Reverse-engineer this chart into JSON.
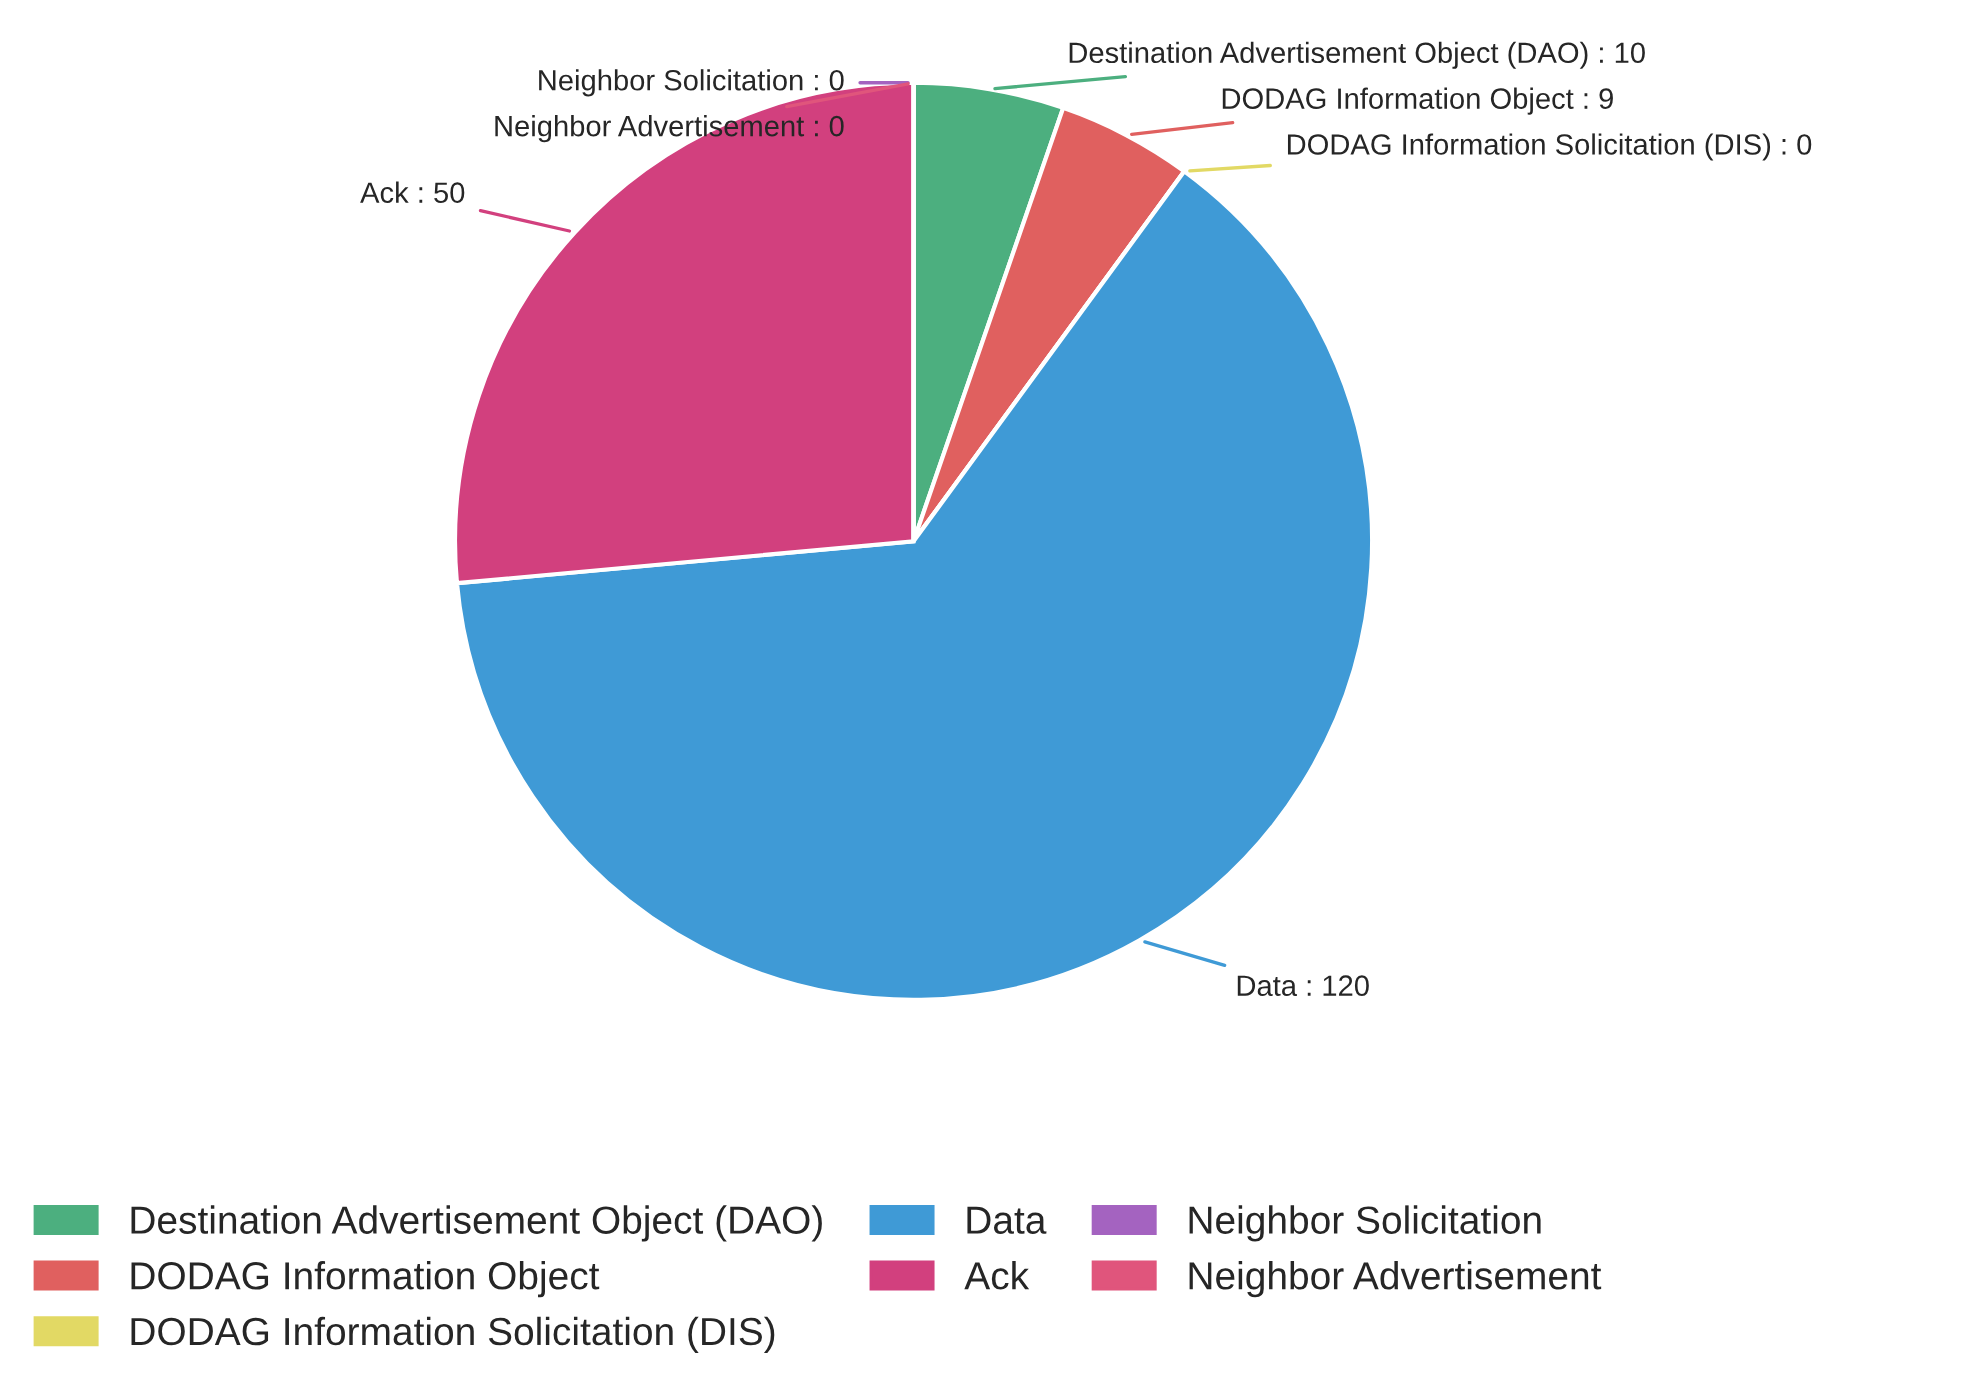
{
  "chart_data": {
    "type": "pie",
    "categories": [
      "Destination Advertisement Object (DAO)",
      "DODAG Information Object",
      "DODAG Information Solicitation (DIS)",
      "Data",
      "Ack",
      "Neighbor Solicitation",
      "Neighbor Advertisement"
    ],
    "values": [
      10,
      9,
      0,
      120,
      50,
      0,
      0
    ],
    "colors": [
      "#4caf7f",
      "#e0605f",
      "#e2d964",
      "#3f9ad6",
      "#d2407e",
      "#a463c0",
      "#e0557c"
    ],
    "value_labels": [
      ": 10",
      ": 9",
      ": 0",
      ": 120",
      ": 50",
      ": 0",
      ": 0"
    ],
    "legend": "bottom"
  }
}
